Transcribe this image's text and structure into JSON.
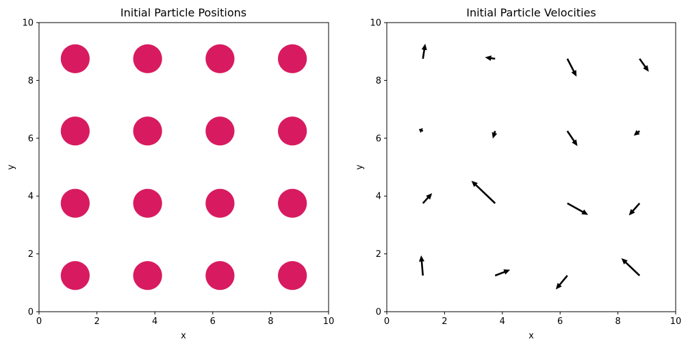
{
  "chart_data": [
    {
      "type": "scatter",
      "title": "Initial Particle Positions",
      "xlabel": "x",
      "ylabel": "y",
      "xlim": [
        0,
        10
      ],
      "ylim": [
        0,
        10
      ],
      "xticks": [
        "0",
        "2",
        "4",
        "6",
        "8",
        "10"
      ],
      "yticks": [
        "0",
        "2",
        "4",
        "6",
        "8",
        "10"
      ],
      "grid": false,
      "marker_color": "#d81b60",
      "points": [
        {
          "x": 1.25,
          "y": 1.25
        },
        {
          "x": 3.75,
          "y": 1.25
        },
        {
          "x": 6.25,
          "y": 1.25
        },
        {
          "x": 8.75,
          "y": 1.25
        },
        {
          "x": 1.25,
          "y": 3.75
        },
        {
          "x": 3.75,
          "y": 3.75
        },
        {
          "x": 6.25,
          "y": 3.75
        },
        {
          "x": 8.75,
          "y": 3.75
        },
        {
          "x": 1.25,
          "y": 6.25
        },
        {
          "x": 3.75,
          "y": 6.25
        },
        {
          "x": 6.25,
          "y": 6.25
        },
        {
          "x": 8.75,
          "y": 6.25
        },
        {
          "x": 1.25,
          "y": 8.75
        },
        {
          "x": 3.75,
          "y": 8.75
        },
        {
          "x": 6.25,
          "y": 8.75
        },
        {
          "x": 8.75,
          "y": 8.75
        }
      ],
      "marker_radius_data": 0.5
    },
    {
      "type": "quiver",
      "title": "Initial Particle Velocities",
      "xlabel": "x",
      "ylabel": "y",
      "xlim": [
        0,
        10
      ],
      "ylim": [
        0,
        10
      ],
      "xticks": [
        "0",
        "2",
        "4",
        "6",
        "8",
        "10"
      ],
      "yticks": [
        "0",
        "2",
        "4",
        "6",
        "8",
        "10"
      ],
      "grid": false,
      "arrow_color": "#000000",
      "vectors": [
        {
          "x": 1.25,
          "y": 8.75,
          "u": 0.08,
          "v": 0.52
        },
        {
          "x": 3.75,
          "y": 8.75,
          "u": -0.35,
          "v": 0.05
        },
        {
          "x": 6.25,
          "y": 8.75,
          "u": 0.32,
          "v": -0.62
        },
        {
          "x": 8.75,
          "y": 8.75,
          "u": 0.32,
          "v": -0.45
        },
        {
          "x": 1.25,
          "y": 6.25,
          "u": -0.14,
          "v": 0.06
        },
        {
          "x": 3.75,
          "y": 6.25,
          "u": -0.08,
          "v": -0.26
        },
        {
          "x": 6.25,
          "y": 6.25,
          "u": 0.35,
          "v": -0.52
        },
        {
          "x": 8.75,
          "y": 6.25,
          "u": -0.2,
          "v": -0.16
        },
        {
          "x": 1.25,
          "y": 3.75,
          "u": 0.32,
          "v": 0.35
        },
        {
          "x": 3.75,
          "y": 3.75,
          "u": -0.82,
          "v": 0.78
        },
        {
          "x": 6.25,
          "y": 3.75,
          "u": 0.72,
          "v": -0.4
        },
        {
          "x": 8.75,
          "y": 3.75,
          "u": -0.37,
          "v": -0.42
        },
        {
          "x": 1.25,
          "y": 1.25,
          "u": -0.06,
          "v": 0.7
        },
        {
          "x": 3.75,
          "y": 1.25,
          "u": 0.52,
          "v": 0.2
        },
        {
          "x": 6.25,
          "y": 1.25,
          "u": -0.4,
          "v": -0.48
        },
        {
          "x": 8.75,
          "y": 1.25,
          "u": -0.63,
          "v": 0.6
        }
      ]
    }
  ]
}
